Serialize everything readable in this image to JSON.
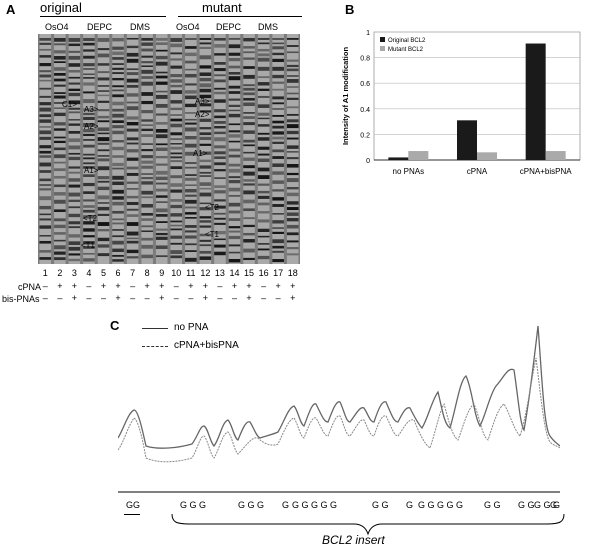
{
  "panel_a": {
    "label": "A",
    "group_titles": [
      "original",
      "mutant"
    ],
    "reagents": [
      "OsO4",
      "DEPC",
      "DMS",
      "OsO4",
      "DEPC",
      "DMS"
    ],
    "lane_numbers": [
      "1",
      "2",
      "3",
      "4",
      "5",
      "6",
      "7",
      "8",
      "9",
      "10",
      "11",
      "12",
      "13",
      "14",
      "15",
      "16",
      "17",
      "18"
    ],
    "row_labels": [
      "cPNA",
      "bis-PNAs"
    ],
    "cpna_signs": [
      "–",
      "+",
      "+",
      "–",
      "+",
      "+",
      "–",
      "+",
      "+",
      "–",
      "+",
      "+",
      "–",
      "+",
      "+",
      "–",
      "+",
      "+"
    ],
    "bispna_signs": [
      "–",
      "–",
      "+",
      "–",
      "–",
      "+",
      "–",
      "–",
      "+",
      "–",
      "–",
      "+",
      "–",
      "–",
      "+",
      "–",
      "–",
      "+"
    ],
    "left_marks": [
      "C1>",
      "A3>",
      "A2>",
      "A1>",
      "<T2",
      "<T1"
    ],
    "right_marks": [
      "A3>",
      "A2>",
      "A1>",
      "<T2",
      "<T1"
    ]
  },
  "panel_b": {
    "label": "B"
  },
  "panel_c": {
    "label": "C",
    "legend": [
      "no PNA",
      "cPNA+bisPNA"
    ],
    "g_groups": [
      "GG",
      "G G G",
      "G G G",
      "G",
      "G G G G",
      "G",
      "G G",
      "G",
      "G G G G G",
      "G G",
      "G G",
      "G G G",
      "G"
    ],
    "insert_label": "BCL2 insert"
  },
  "chart_data": [
    {
      "type": "bar",
      "categories": [
        "no PNAs",
        "cPNA",
        "cPNA+bisPNA"
      ],
      "series": [
        {
          "name": "Original BCL2",
          "values": [
            0.02,
            0.31,
            0.91
          ],
          "color": "#1a1a1a"
        },
        {
          "name": "Mutant BCL2",
          "values": [
            0.07,
            0.06,
            0.07
          ],
          "color": "#aaaaaa"
        }
      ],
      "ylabel": "Intensity of A1 modification",
      "ylim": [
        0,
        1
      ],
      "yticks": [
        "0",
        "0.2",
        "0.4",
        "0.6",
        "0.8",
        "1"
      ],
      "grid": true,
      "legend_position": "top-left"
    }
  ]
}
